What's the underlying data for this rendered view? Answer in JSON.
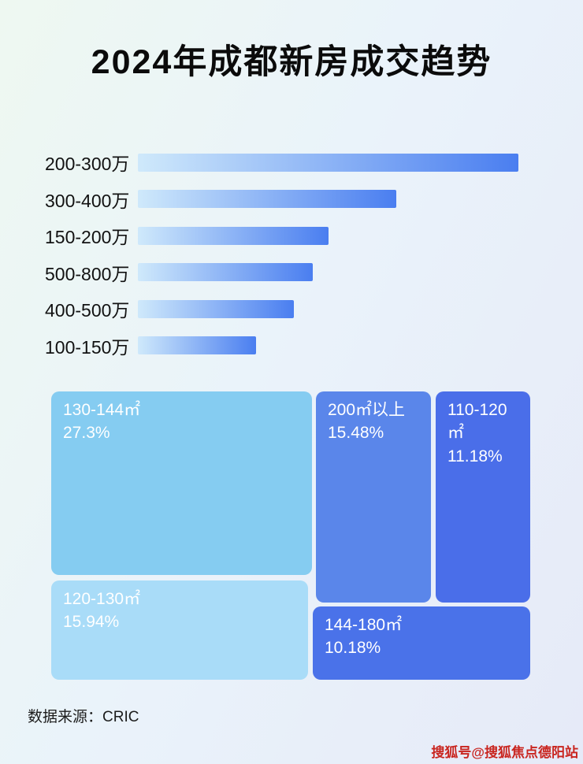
{
  "title": "2024年成都新房成交趋势",
  "footer": {
    "source": "数据来源：CRIC",
    "watermark": "搜狐号@搜狐焦点德阳站"
  },
  "colors": {
    "bar_gradient_start": "#cfe9fb",
    "bar_gradient_end": "#4a7ef0",
    "background_start": "#eef8f1",
    "background_end": "#e6eaf8"
  },
  "chart_data": [
    {
      "type": "bar",
      "orientation": "horizontal",
      "title": "2024年成都新房成交趋势",
      "categories": [
        "200-300万",
        "300-400万",
        "150-200万",
        "500-800万",
        "400-500万",
        "100-150万"
      ],
      "values_relative_pct": [
        100,
        68,
        50,
        46,
        41,
        31
      ],
      "note": "no numeric axis shown in image; values are bar lengths as % of longest bar",
      "xlabel": "",
      "ylabel": "",
      "grid": false,
      "legend": false
    },
    {
      "type": "treemap",
      "title": "",
      "items": [
        {
          "label": "130-144㎡",
          "pct": "27.3%",
          "value": 27.3,
          "color": "#85ccf1"
        },
        {
          "label": "200㎡以上",
          "pct": "15.48%",
          "value": 15.48,
          "color": "#5a86ea"
        },
        {
          "label": "110-120㎡",
          "pct": "11.18%",
          "value": 11.18,
          "color": "#4a6ee9"
        },
        {
          "label": "120-130㎡",
          "pct": "15.94%",
          "value": 15.94,
          "color": "#a9dcf8"
        },
        {
          "label": "144-180㎡",
          "pct": "10.18%",
          "value": 10.18,
          "color": "#4a72e9"
        }
      ],
      "legend": false
    }
  ]
}
